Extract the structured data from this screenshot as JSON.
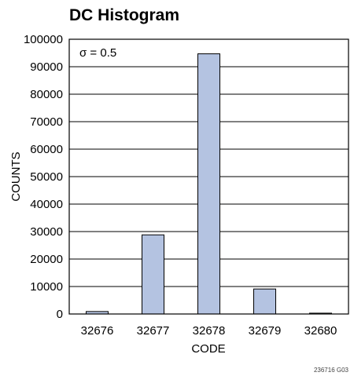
{
  "chart_data": {
    "type": "bar",
    "title": "DC Histogram",
    "xlabel": "CODE",
    "ylabel": "COUNTS",
    "categories": [
      "32676",
      "32677",
      "32678",
      "32679",
      "32680"
    ],
    "values": [
      900,
      28800,
      94700,
      9100,
      300
    ],
    "ylim": [
      0,
      100000
    ],
    "yticks": [
      "0",
      "10000",
      "20000",
      "30000",
      "40000",
      "50000",
      "60000",
      "70000",
      "80000",
      "90000",
      "100000"
    ],
    "annotation": "σ = 0.5",
    "grid": "horizontal",
    "bar_color": "#b4c3e1",
    "legend": "none"
  },
  "figure_code": "236716 G03"
}
